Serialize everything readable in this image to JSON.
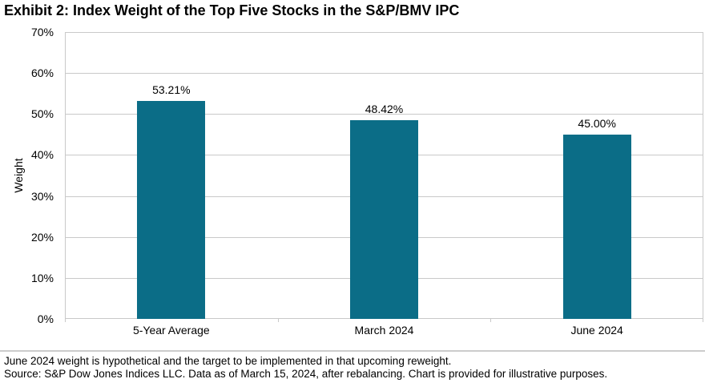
{
  "title": "Exhibit 2: Index Weight of the Top Five Stocks in the S&P/BMV IPC",
  "footnotes": {
    "line1": "June 2024 weight is hypothetical and the target to be implemented in that upcoming reweight.",
    "line2": "Source: S&P Dow Jones Indices LLC. Data as of March 15, 2024, after rebalancing. Chart is provided for illustrative purposes."
  },
  "colors": {
    "bar": "#0b6d87",
    "grid": "#c9c9c9",
    "text": "#000000",
    "background": "#ffffff"
  },
  "chart_data": {
    "type": "bar",
    "title": "Exhibit 2: Index Weight of the Top Five Stocks in the S&P/BMV IPC",
    "categories": [
      "5-Year Average",
      "March 2024",
      "June 2024"
    ],
    "values": [
      53.21,
      48.42,
      45.0
    ],
    "data_labels": [
      "53.21%",
      "48.42%",
      "45.00%"
    ],
    "xlabel": "",
    "ylabel": "Weight",
    "ylim": [
      0,
      70
    ],
    "ytick_step": 10,
    "ytick_labels": [
      "0%",
      "10%",
      "20%",
      "30%",
      "40%",
      "50%",
      "60%",
      "70%"
    ],
    "grid": true,
    "legend": false
  }
}
